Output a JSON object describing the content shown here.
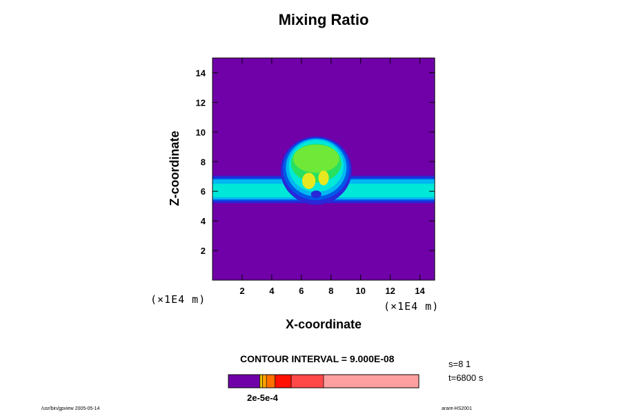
{
  "chart_data": {
    "type": "heatmap",
    "title": "Mixing Ratio",
    "xlabel": "X-coordinate",
    "ylabel": "Z-coordinate",
    "x_unit": "(×1E4 m)",
    "z_unit": "(×1E4 m)",
    "xlim": [
      0,
      15
    ],
    "ylim": [
      0,
      15
    ],
    "xticks": [
      "2",
      "4",
      "6",
      "8",
      "10",
      "12",
      "14"
    ],
    "yticks": [
      "2",
      "4",
      "6",
      "8",
      "10",
      "12",
      "14"
    ],
    "contour_interval": "CONTOUR INTERVAL = 9.000E-08",
    "colorbar_label": "2e-5e-4",
    "background_value_level": "lowest",
    "features": [
      {
        "name": "horizontal layer",
        "z_range": [
          5.2,
          7.0
        ],
        "x_range": [
          0,
          15
        ]
      },
      {
        "name": "rising thermal cap",
        "center": [
          7.0,
          7.8
        ],
        "x_range": [
          5.0,
          9.0
        ],
        "z_range": [
          5.5,
          9.5
        ]
      }
    ],
    "grid": false
  },
  "colors": {
    "background_level": "#7000a8",
    "level_blue_dark": "#2828d8",
    "level_blue": "#0058e8",
    "level_sky": "#00b8f0",
    "level_cyan": "#00e8d8",
    "level_green": "#28e060",
    "level_lightgreen": "#70e838",
    "level_yellow": "#e8e820",
    "colorbar": [
      "#7000a8",
      "#e8c000",
      "#ffa000",
      "#ff7000",
      "#ff1000",
      "#ff4848",
      "#ffa0a0"
    ]
  },
  "annotations": {
    "step": "s=8 1",
    "time": "t=6800 s"
  },
  "footer": {
    "left": "/usr/bin/gpview 2005-05-14",
    "right": "arare-HS2001"
  }
}
